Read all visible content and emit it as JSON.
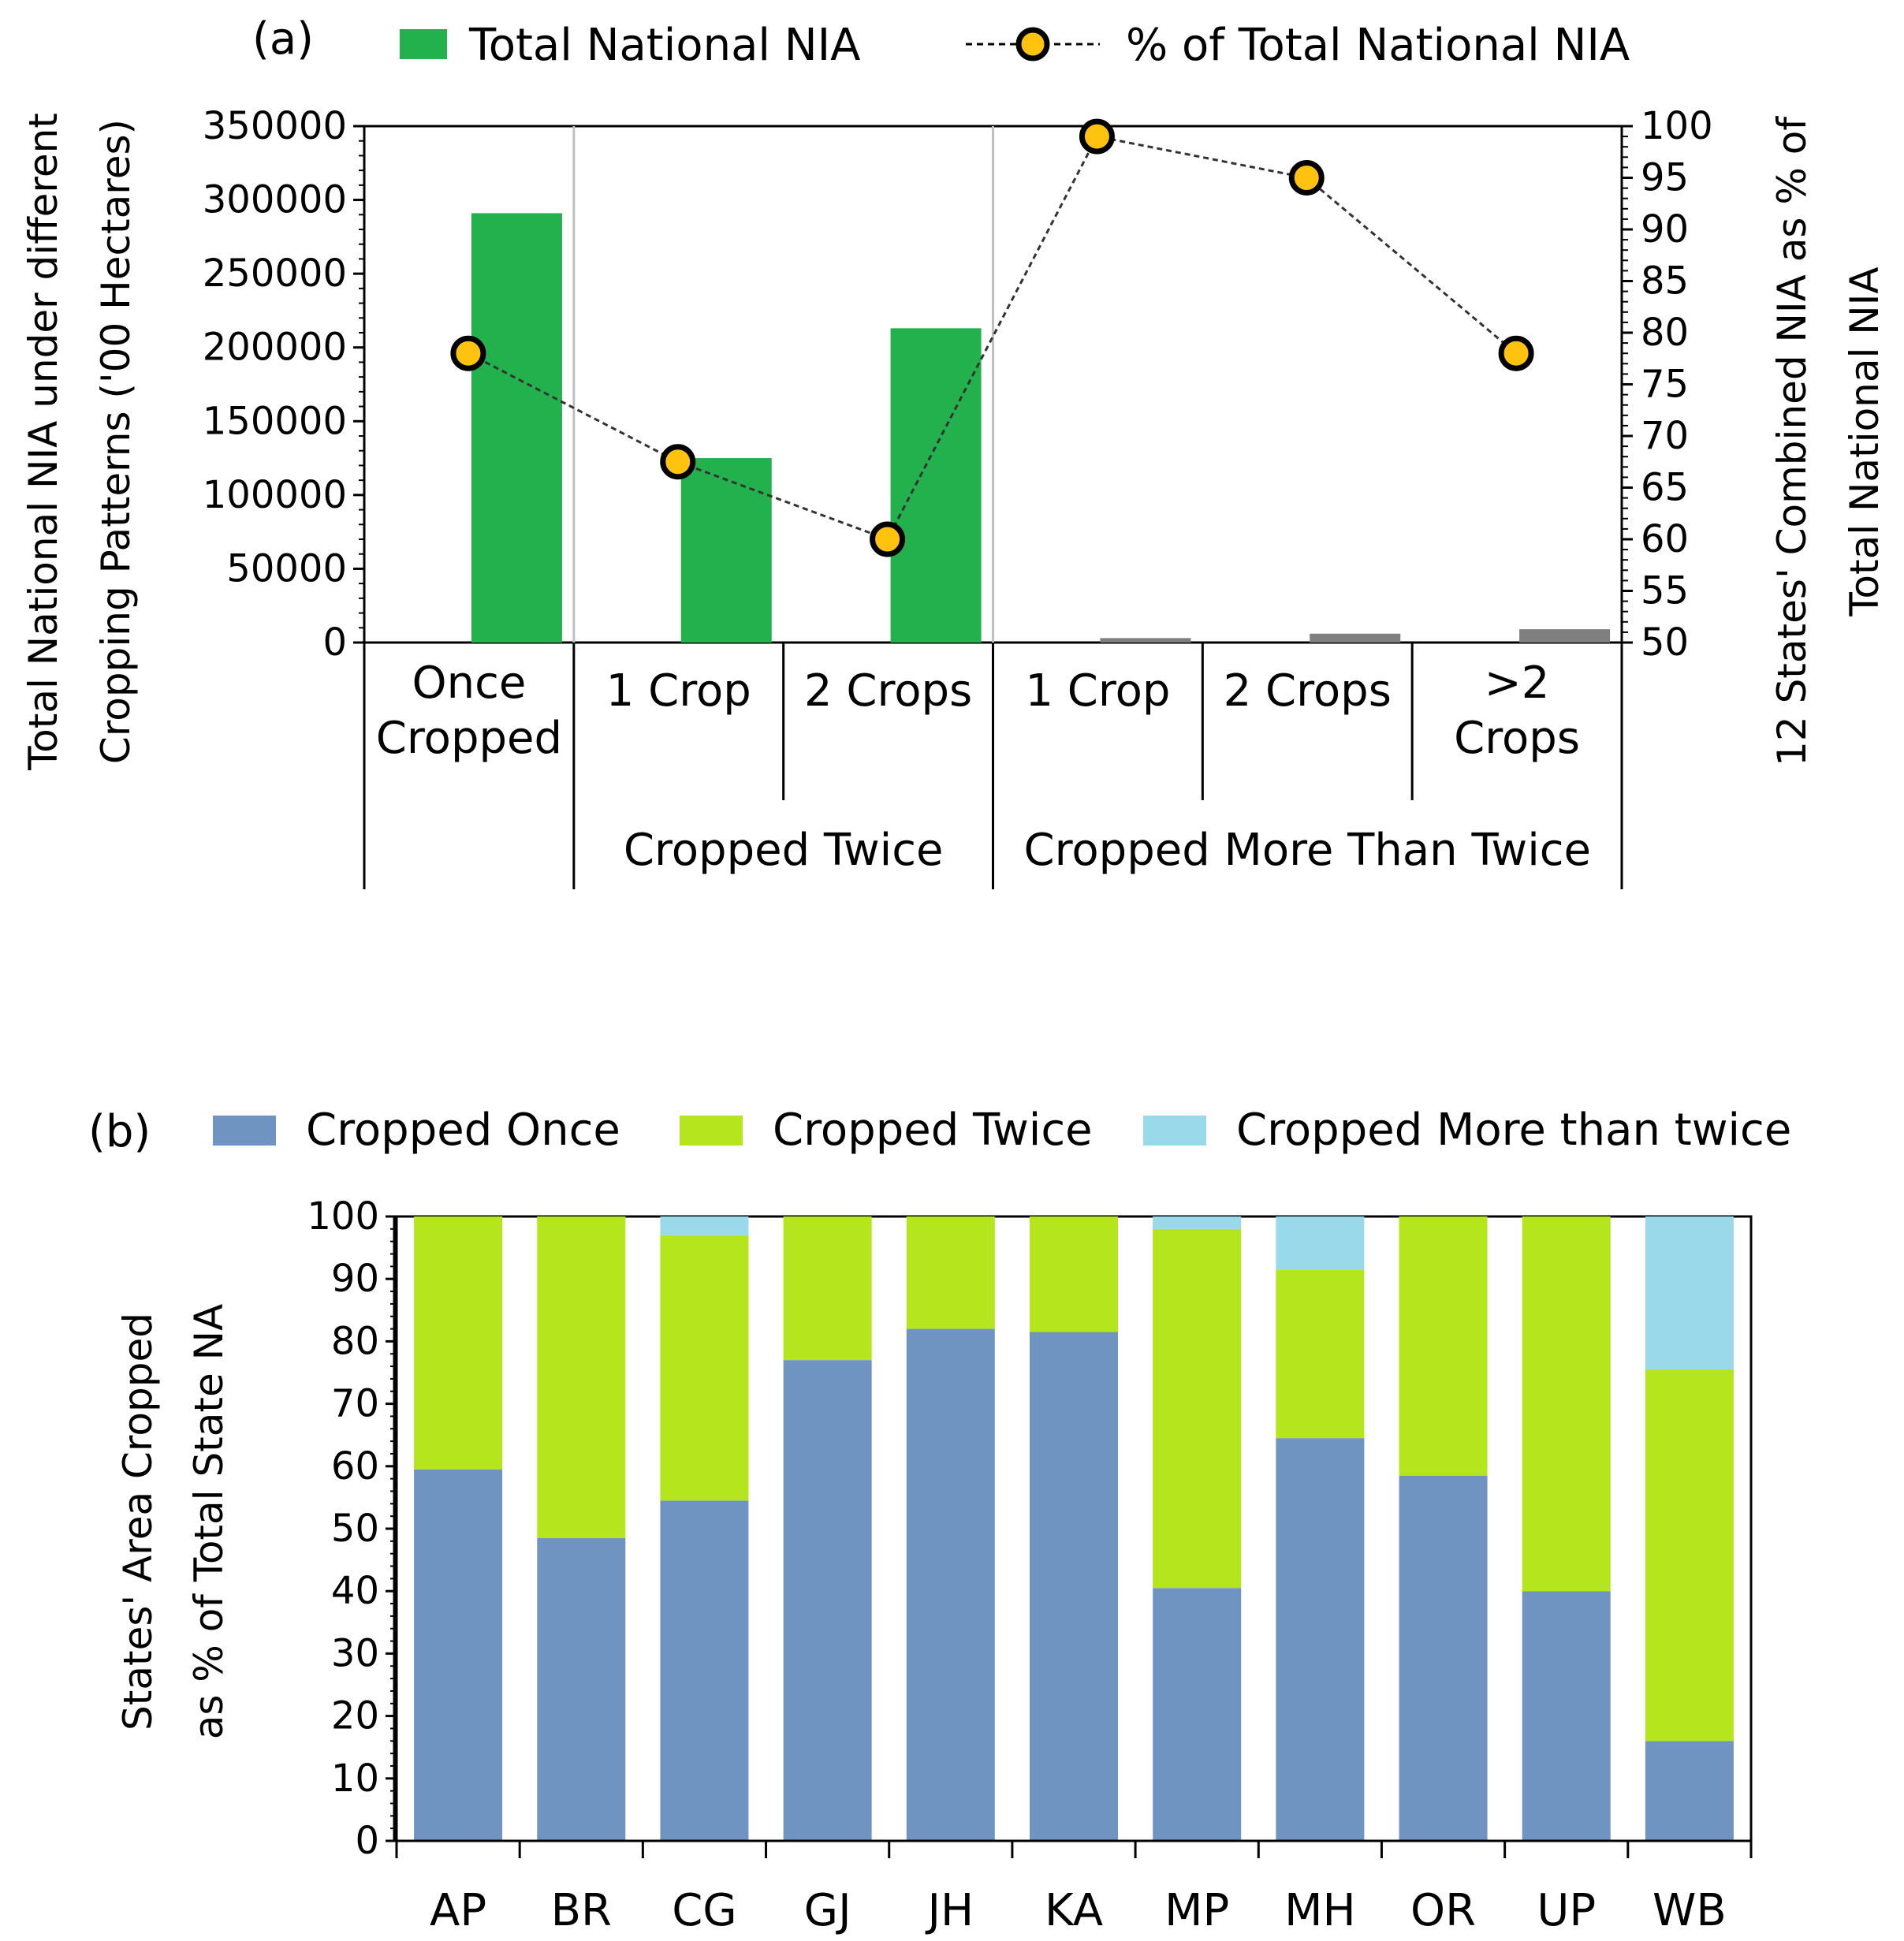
{
  "chart_data": [
    {
      "type": "bar",
      "panel_label": "(a)",
      "legend": {
        "bar": "Total National NIA",
        "line": "% of Total National NIA"
      },
      "ylabel_left": [
        "Total National NIA under different",
        "Cropping  Patterns ('00 Hectares)"
      ],
      "ylabel_right": [
        "12 States' Combined NIA as % of",
        "Total National NIA"
      ],
      "ylim_left": [
        0,
        350000
      ],
      "yticks_left": [
        "350000",
        "300000",
        "250000",
        "200000",
        "150000",
        "100000",
        "50000",
        "0"
      ],
      "ylim_right": [
        50,
        100
      ],
      "yticks_right": [
        "100",
        "95",
        "90",
        "85",
        "80",
        "75",
        "70",
        "65",
        "60",
        "55",
        "50"
      ],
      "categories": [
        {
          "label": [
            "Once",
            "Cropped"
          ],
          "group": ""
        },
        {
          "label": [
            "1 Crop"
          ],
          "group": "Cropped Twice"
        },
        {
          "label": [
            "2 Crops"
          ],
          "group": "Cropped Twice"
        },
        {
          "label": [
            "1 Crop"
          ],
          "group": "Cropped More Than Twice"
        },
        {
          "label": [
            "2 Crops"
          ],
          "group": "Cropped More Than Twice"
        },
        {
          "label": [
            ">2",
            "Crops"
          ],
          "group": "Cropped More Than Twice"
        }
      ],
      "groups": [
        "Cropped Twice",
        "Cropped More Than Twice"
      ],
      "bar_values": [
        291000,
        125000,
        213000,
        3000,
        6000,
        9000
      ],
      "line_values": [
        78,
        67.5,
        60,
        99,
        95,
        78
      ],
      "colors": {
        "bar": "#22b14c",
        "bar_small": "#7f7f7f",
        "marker": "#ffc20e"
      }
    },
    {
      "type": "bar",
      "stacked": true,
      "panel_label": "(b)",
      "ylabel": [
        "States' Area  Cropped",
        "as % of Total State NA"
      ],
      "ylim": [
        0,
        100
      ],
      "yticks": [
        "100",
        "90",
        "80",
        "70",
        "60",
        "50",
        "40",
        "30",
        "20",
        "10",
        "0"
      ],
      "categories": [
        "AP",
        "BR",
        "CG",
        "GJ",
        "JH",
        "KA",
        "MP",
        "MH",
        "OR",
        "UP",
        "WB"
      ],
      "series": [
        {
          "name": "Cropped Once",
          "color": "#7094c2",
          "values": [
            59.5,
            48.5,
            54.5,
            77,
            82,
            81.5,
            40.5,
            64.5,
            58.5,
            40,
            16
          ]
        },
        {
          "name": "Cropped Twice",
          "color": "#b5e61d",
          "values": [
            40.5,
            51.5,
            42.5,
            23,
            18,
            18.5,
            57.5,
            27,
            41.5,
            60,
            59.5
          ]
        },
        {
          "name": "Cropped More than twice",
          "color": "#99d9ea",
          "values": [
            0,
            0,
            3,
            0,
            0,
            0,
            2,
            8.5,
            0,
            0,
            24.5
          ]
        }
      ]
    }
  ]
}
